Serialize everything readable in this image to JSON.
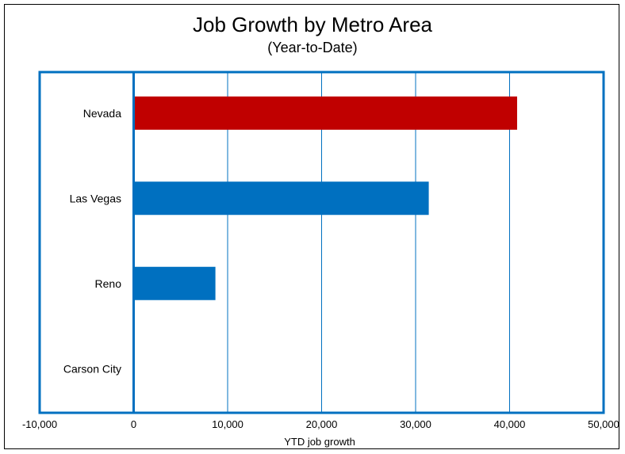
{
  "chart_data": {
    "type": "bar",
    "orientation": "horizontal",
    "title": "Job Growth by Metro Area",
    "subtitle": "(Year-to-Date)",
    "xlabel": "YTD job growth",
    "ylabel": "",
    "categories": [
      "Nevada",
      "Las Vegas",
      "Reno",
      "Carson City"
    ],
    "values": [
      40800,
      31400,
      8700,
      0
    ],
    "bar_colors": [
      "#c00000",
      "#0070c0",
      "#0070c0",
      "#0070c0"
    ],
    "xlim": [
      -10000,
      50000
    ],
    "xticks": [
      -10000,
      0,
      10000,
      20000,
      30000,
      40000,
      50000
    ],
    "xtick_labels": [
      "-10,000",
      "0",
      "10,000",
      "20,000",
      "30,000",
      "40,000",
      "50,000"
    ],
    "grid": "vertical",
    "legend": "none"
  },
  "colors": {
    "frame": "#0070c0",
    "gridline": "#0070c0",
    "highlight_bar": "#c00000",
    "bar": "#0070c0"
  }
}
